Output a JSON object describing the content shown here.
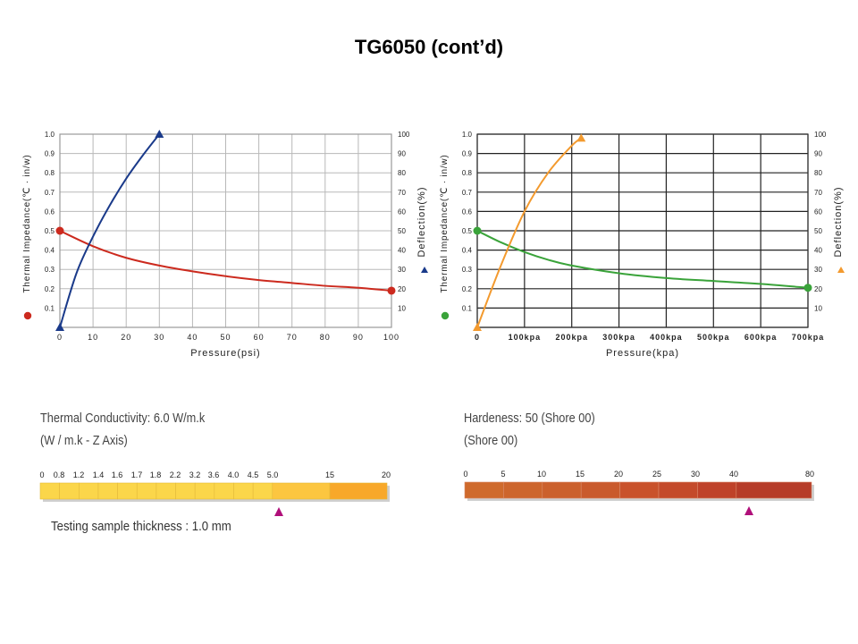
{
  "page": {
    "title": "TG6050 (cont’d)"
  },
  "chart_data": [
    {
      "type": "line",
      "name": "psi-chart",
      "xlabel": "Pressure(psi)",
      "ylabel": "Thermal Impedance(℃ · in/w)",
      "y2label": "Deflection(%)",
      "xlim": [
        0,
        100
      ],
      "ylim": [
        0,
        1.0
      ],
      "y2lim": [
        0,
        100
      ],
      "grid": true,
      "x_ticks": [
        "0",
        "10",
        "20",
        "30",
        "40",
        "50",
        "60",
        "70",
        "80",
        "90",
        "100"
      ],
      "y_ticks": [
        "0.1",
        "0.2",
        "0.3",
        "0.4",
        "0.5",
        "0.6",
        "0.7",
        "0.8",
        "0.9",
        "1.0"
      ],
      "y2_ticks": [
        "10",
        "20",
        "30",
        "40",
        "50",
        "60",
        "70",
        "80",
        "90",
        "100"
      ],
      "series": [
        {
          "name": "Thermal Impedance",
          "axis": "left",
          "color": "#cc2a1e",
          "marker": "circle",
          "x": [
            0,
            10,
            20,
            30,
            40,
            50,
            60,
            70,
            80,
            90,
            100
          ],
          "y": [
            0.5,
            0.42,
            0.36,
            0.32,
            0.29,
            0.265,
            0.245,
            0.23,
            0.215,
            0.205,
            0.19
          ]
        },
        {
          "name": "Deflection",
          "axis": "right",
          "color": "#1a3a8a",
          "marker": "triangle",
          "x": [
            0,
            5,
            10,
            15,
            20,
            25,
            30
          ],
          "y": [
            0,
            28,
            47,
            63,
            77,
            89,
            100
          ]
        }
      ]
    },
    {
      "type": "line",
      "name": "kpa-chart",
      "xlabel": "Pressure(kpa)",
      "ylabel": "Thermal Impedance(℃ · in/w)",
      "y2label": "Deflection(%)",
      "xlim": [
        0,
        700
      ],
      "ylim": [
        0,
        1.0
      ],
      "y2lim": [
        0,
        100
      ],
      "grid": true,
      "x_ticks": [
        "0",
        "100kpa",
        "200kpa",
        "300kpa",
        "400kpa",
        "500kpa",
        "600kpa",
        "700kpa"
      ],
      "y_ticks": [
        "0.1",
        "0.2",
        "0.3",
        "0.4",
        "0.5",
        "0.6",
        "0.7",
        "0.8",
        "0.9",
        "1.0"
      ],
      "y2_ticks": [
        "10",
        "20",
        "30",
        "40",
        "50",
        "60",
        "70",
        "80",
        "90",
        "100"
      ],
      "series": [
        {
          "name": "Thermal Impedance",
          "axis": "left",
          "color": "#3aa33a",
          "marker": "circle",
          "x": [
            0,
            50,
            100,
            150,
            200,
            300,
            400,
            500,
            600,
            700
          ],
          "y": [
            0.5,
            0.44,
            0.39,
            0.35,
            0.32,
            0.28,
            0.255,
            0.24,
            0.225,
            0.205
          ]
        },
        {
          "name": "Deflection",
          "axis": "right",
          "color": "#f39a2e",
          "marker": "triangle",
          "x": [
            0,
            50,
            100,
            150,
            200,
            220
          ],
          "y": [
            0,
            32,
            60,
            80,
            94,
            98
          ]
        }
      ]
    }
  ],
  "conductivity": {
    "title": "Thermal Conductivity: 6.0 W/m.k",
    "subtitle": "(W / m.k - Z Axis)",
    "labels": [
      "0",
      "0.8",
      "1.2",
      "1.4",
      "1.6",
      "1.7",
      "1.8",
      "2.2",
      "3.2",
      "3.6",
      "4.0",
      "4.5",
      "5.0",
      "15",
      "20"
    ],
    "colors": [
      "#fbd64a",
      "#fbd64a",
      "#fbd64a",
      "#fbd64a",
      "#fbd64a",
      "#fbd64a",
      "#fbd64a",
      "#fbd64a",
      "#fbd64a",
      "#fbd64a",
      "#fbd64a",
      "#fbd64a",
      "#fcc640",
      "#f8a82a"
    ],
    "marker_value": "6.0",
    "marker_color": "#b0107a",
    "thickness": "Testing sample thickness :  1.0 mm"
  },
  "hardness": {
    "title": "Hardeness: 50 (Shore 00)",
    "subtitle": "(Shore 00)",
    "labels": [
      "0",
      "5",
      "10",
      "15",
      "20",
      "25",
      "30",
      "40",
      "80"
    ],
    "colors": [
      "#cf6a2c",
      "#cd652c",
      "#cb602c",
      "#c95a2c",
      "#c9522b",
      "#c44a2a",
      "#bf4229",
      "#b63c28"
    ],
    "marker_value": "50",
    "marker_color": "#b0107a"
  }
}
